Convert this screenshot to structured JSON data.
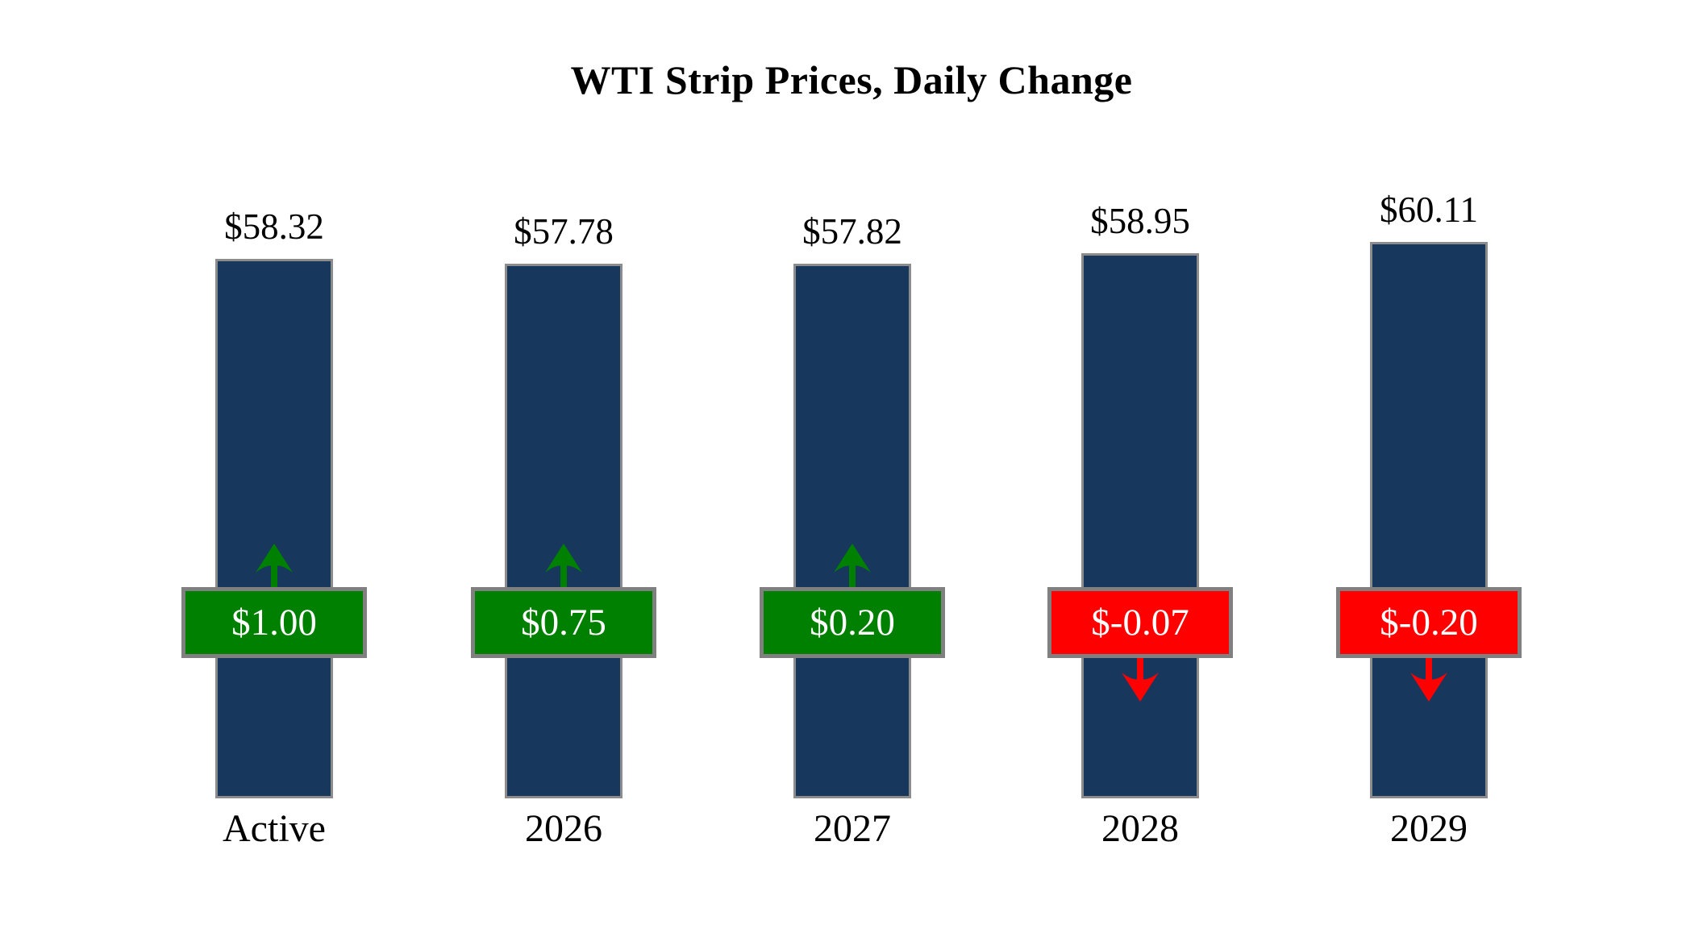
{
  "title": "WTI Strip Prices, Daily Change",
  "colors": {
    "background": "#FFFFFF",
    "bar": "#17375D",
    "bar_border": "#8C8C8C",
    "badge_border": "#808080",
    "up": "#008000",
    "down": "#FF0000",
    "badge_text": "#FFFFFF",
    "label_text": "#000000"
  },
  "chart_data": {
    "type": "bar",
    "title": "WTI Strip Prices, Daily Change",
    "categories": [
      "Active",
      "2026",
      "2027",
      "2028",
      "2029"
    ],
    "series": [
      {
        "name": "Strip Price",
        "values": [
          58.32,
          57.78,
          57.82,
          58.95,
          60.11
        ],
        "labels": [
          "$58.32",
          "$57.78",
          "$57.82",
          "$58.95",
          "$60.11"
        ]
      },
      {
        "name": "Daily Change",
        "values": [
          1.0,
          0.75,
          0.2,
          -0.07,
          -0.2
        ],
        "labels": [
          "$1.00",
          "$0.75",
          "$0.20",
          "$-0.07",
          "$-0.20"
        ],
        "directions": [
          "up",
          "up",
          "up",
          "down",
          "down"
        ]
      }
    ],
    "ylim": [
      0,
      62
    ],
    "grid": false,
    "legend": false,
    "x_axis_visible": false,
    "y_axis_visible": false
  }
}
